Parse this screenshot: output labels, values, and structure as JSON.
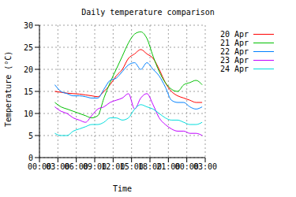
{
  "chart_data": {
    "type": "line",
    "title": "Daily temperature comparison",
    "x_label": "Time",
    "y_label": "Temperature (°C)",
    "x": [
      2.5,
      3.5,
      4.5,
      5.5,
      6.5,
      7.5,
      8.5,
      9.5,
      10.5,
      11.5,
      12.5,
      13.5,
      14.5,
      15.5,
      16.5,
      17.5,
      18.5,
      19.5,
      20.5,
      21.5,
      22.5,
      23.5,
      24.5,
      25.5,
      26.5
    ],
    "series": [
      {
        "name": "20 Apr",
        "color": "#ff0000",
        "values": [
          15,
          14.8,
          14.6,
          14.5,
          14.4,
          14.2,
          14,
          13.8,
          15,
          16.5,
          18.5,
          20,
          22.5,
          23.5,
          24.5,
          23.5,
          22.5,
          20,
          17,
          15,
          14,
          13.5,
          13,
          12.5,
          12.5
        ]
      },
      {
        "name": "21 Apr",
        "color": "#00c000",
        "values": [
          12.5,
          11.5,
          11,
          10.5,
          10,
          9.5,
          9,
          9.5,
          13.5,
          17,
          20,
          23,
          26,
          28,
          28.5,
          27,
          23,
          19.5,
          17,
          15.5,
          15,
          16.5,
          17,
          17.5,
          16.5
        ]
      },
      {
        "name": "22 Apr",
        "color": "#0080ff",
        "values": [
          16.5,
          15,
          14.5,
          14,
          14,
          13.8,
          13.5,
          13.5,
          15.5,
          17.5,
          18,
          19.5,
          21,
          21.5,
          20,
          21.5,
          20,
          18.5,
          16,
          13,
          12.5,
          12.5,
          11.5,
          11,
          11.5
        ]
      },
      {
        "name": "23 Apr",
        "color": "#c000ff",
        "values": [
          11.5,
          10.5,
          10,
          9,
          8.5,
          8,
          9.5,
          11,
          11.5,
          12.5,
          13,
          13.5,
          14.5,
          11,
          13.5,
          14.5,
          12,
          9,
          7.5,
          6.5,
          6,
          6,
          5.5,
          5.5,
          5
        ]
      },
      {
        "name": "24 Apr",
        "color": "#00dddd",
        "values": [
          5.5,
          5,
          5,
          6,
          6.5,
          7,
          7.5,
          7.5,
          8,
          9,
          9,
          8.5,
          9,
          11,
          12,
          11.5,
          11,
          10,
          9,
          8.5,
          8.5,
          8,
          7.5,
          7.5,
          8
        ]
      }
    ],
    "xlim": [
      0,
      27
    ],
    "xticks": [
      {
        "value": 0,
        "label": "00:00"
      },
      {
        "value": 3,
        "label": "03:00"
      },
      {
        "value": 6,
        "label": "06:00"
      },
      {
        "value": 9,
        "label": "09:00"
      },
      {
        "value": 12,
        "label": "12:00"
      },
      {
        "value": 15,
        "label": "15:00"
      },
      {
        "value": 18,
        "label": "18:00"
      },
      {
        "value": 21,
        "label": "21:00"
      },
      {
        "value": 24,
        "label": "00:00"
      },
      {
        "value": 27,
        "label": "03:00"
      }
    ],
    "ylim": [
      0,
      30
    ],
    "yticks": [
      0,
      5,
      10,
      15,
      20,
      25,
      30
    ],
    "grid": true,
    "legend": "upper right"
  }
}
